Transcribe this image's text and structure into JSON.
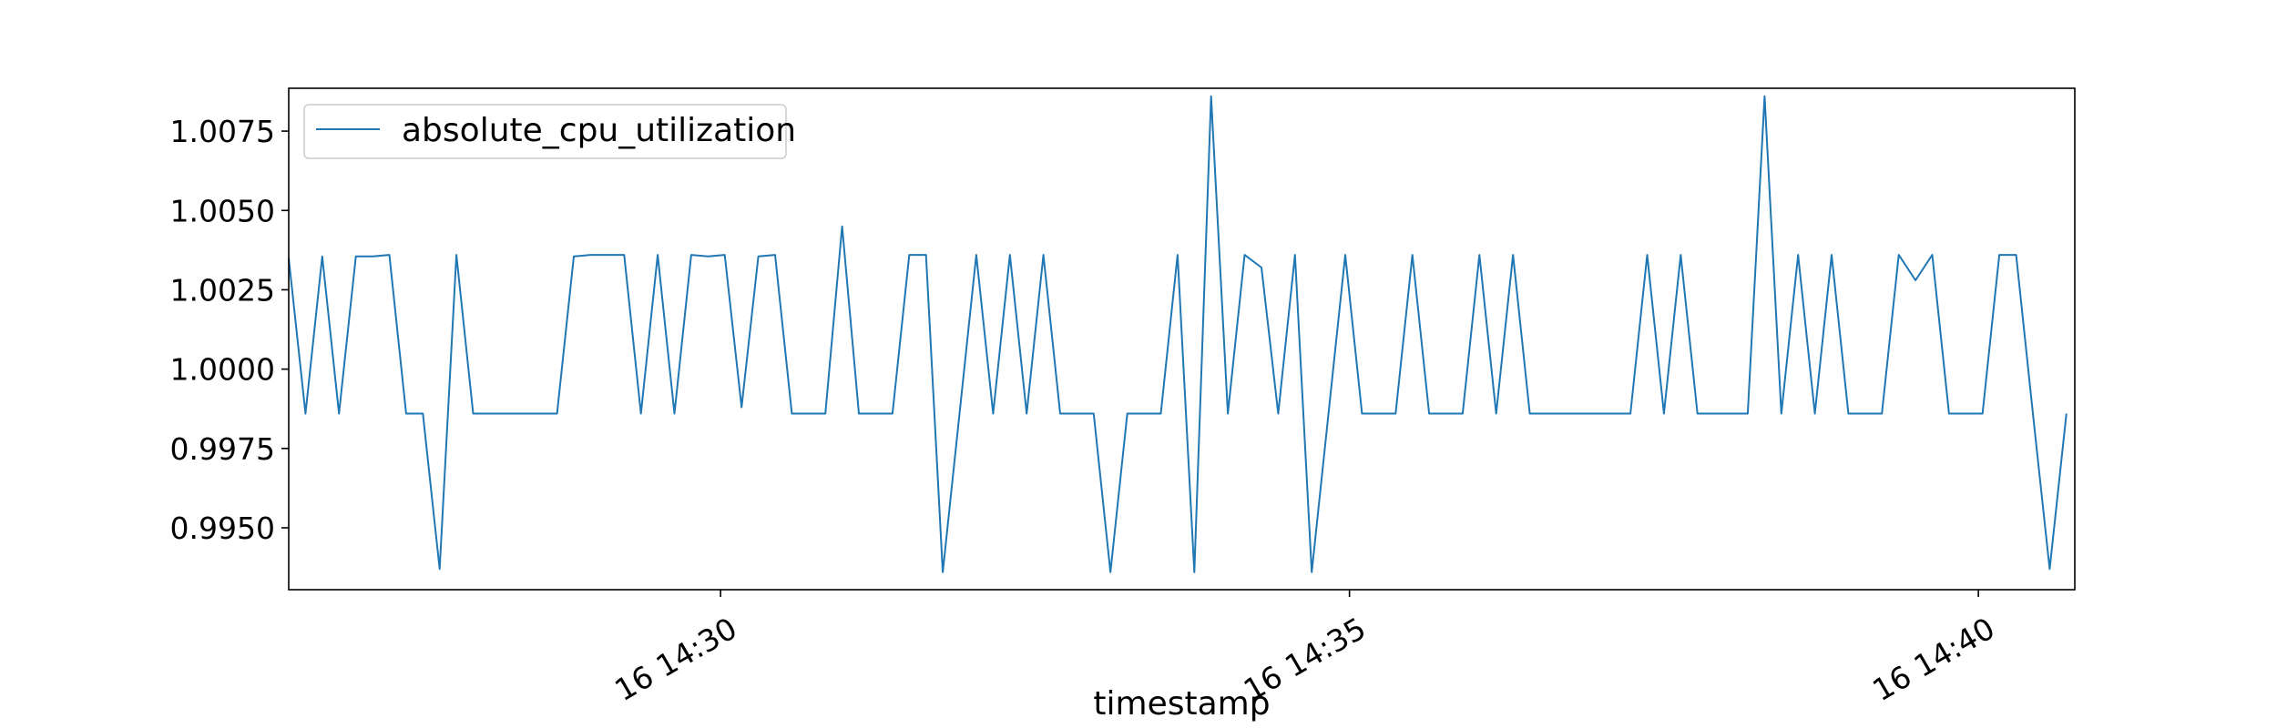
{
  "chart_data": {
    "type": "line",
    "xlabel": "timestamp",
    "ylabel": "",
    "title": "",
    "legend": {
      "placement": "top-left",
      "entries": [
        "absolute_cpu_utilization"
      ]
    },
    "grid": false,
    "x_unit": "date",
    "x_range": [
      "16 14:26:34",
      "16 14:40:46"
    ],
    "ylim": [
      0.99305,
      1.00885
    ],
    "x_ticks": [
      {
        "time": "16 14:30:00",
        "label": "16 14:30"
      },
      {
        "time": "16 14:35:00",
        "label": "16 14:35"
      },
      {
        "time": "16 14:40:00",
        "label": "16 14:40"
      }
    ],
    "y_ticks": [
      {
        "value": 0.995,
        "label": "0.9950"
      },
      {
        "value": 0.9975,
        "label": "0.9975"
      },
      {
        "value": 1.0,
        "label": "1.0000"
      },
      {
        "value": 1.0025,
        "label": "1.0025"
      },
      {
        "value": 1.005,
        "label": "1.0050"
      },
      {
        "value": 1.0075,
        "label": "1.0075"
      }
    ],
    "series": [
      {
        "name": "absolute_cpu_utilization",
        "color": "#1f77b4",
        "start_time": "16 14:26:34",
        "step": "8s",
        "values": [
          1.0035,
          0.9986,
          1.00355,
          0.9986,
          1.00355,
          1.00355,
          1.0036,
          0.9986,
          0.9986,
          0.9937,
          1.0036,
          0.9986,
          0.9986,
          0.9986,
          0.9986,
          0.9986,
          0.9986,
          1.00355,
          1.0036,
          1.0036,
          1.0036,
          0.9986,
          1.0036,
          0.9986,
          1.0036,
          1.00355,
          1.0036,
          0.9988,
          1.00355,
          1.0036,
          0.9986,
          0.9986,
          0.9986,
          1.0045,
          0.9986,
          0.9986,
          0.9986,
          1.0036,
          1.0036,
          0.9936,
          0.9986,
          1.0036,
          0.9986,
          1.0036,
          0.9986,
          1.0036,
          0.9986,
          0.9986,
          0.9986,
          0.9936,
          0.9986,
          0.9986,
          0.9986,
          1.0036,
          0.9936,
          1.0086,
          0.9986,
          1.0036,
          1.0032,
          0.9986,
          1.0036,
          0.9936,
          0.9986,
          1.0036,
          0.9986,
          0.9986,
          0.9986,
          1.0036,
          0.9986,
          0.9986,
          0.9986,
          1.0036,
          0.9986,
          1.0036,
          0.9986,
          0.9986,
          0.9986,
          0.9986,
          0.9986,
          0.9986,
          0.9986,
          1.0036,
          0.9986,
          1.0036,
          0.9986,
          0.9986,
          0.9986,
          0.9986,
          1.0086,
          0.9986,
          1.0036,
          0.9986,
          1.0036,
          0.9986,
          0.9986,
          0.9986,
          1.0036,
          1.0028,
          1.0036,
          0.9986,
          0.9986,
          0.9986,
          1.0036,
          1.0036,
          0.9986,
          0.9937,
          0.9986
        ]
      }
    ]
  }
}
